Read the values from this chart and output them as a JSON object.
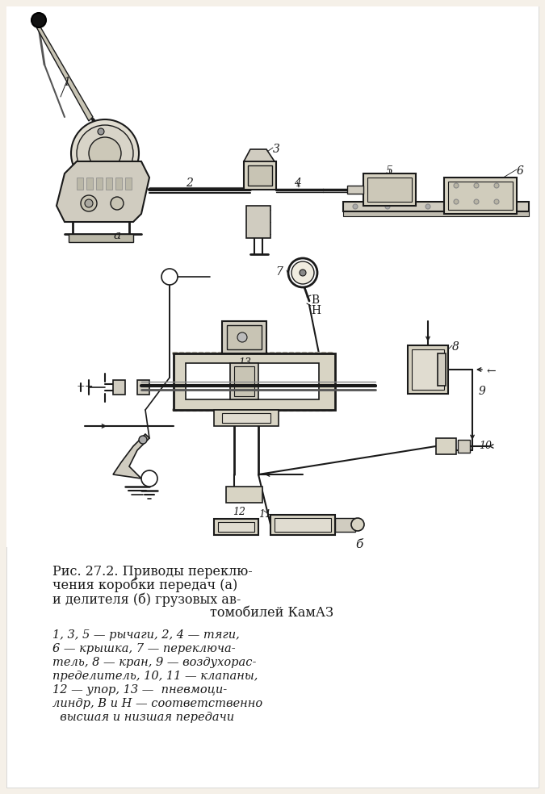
{
  "background_color": "#f5f0e8",
  "title_line1": "Рис. 27.2. Приводы переклю-",
  "title_line2": "чения коробки передач (а)",
  "title_line3": "и делителя (б) грузовых ав-",
  "title_line4": "томобилей КамАЗ",
  "caption_line1": "1, 3, 5 — рычаги, 2, 4 — тяги,",
  "caption_line2": "6 — крышка, 7 — переключа-",
  "caption_line3": "тель, 8 — кран, 9 — воздухорас-",
  "caption_line4": "пределитель, 10, 11 — клапаны,",
  "caption_line5": "12 — упор, 13 —  пневмоци-",
  "caption_line6": "линдр, В и Н — соответственно",
  "caption_line7": "  высшая и низшая передачи",
  "label_a": "а",
  "label_b": "б",
  "text_color": "#1a1a1a",
  "line_color": "#1a1a1a",
  "fig_width": 6.75,
  "fig_height": 9.84,
  "dpi": 100
}
